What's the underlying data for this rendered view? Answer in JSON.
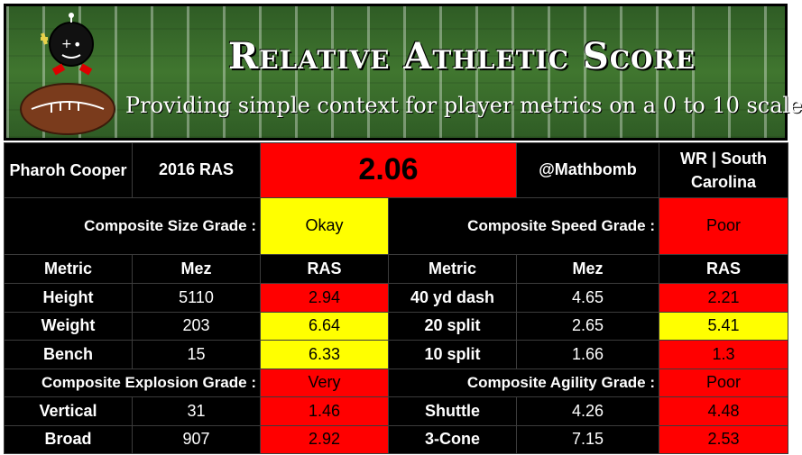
{
  "header": {
    "title": "Relative Athletic Score",
    "subtitle": "Providing simple context for player metrics on a 0 to 10 scale"
  },
  "player": {
    "name": "Pharoh Cooper",
    "ras_label": "2016 RAS",
    "ras_score": "2.06",
    "handle": "@Mathbomb",
    "position_school": "WR | South Carolina"
  },
  "composite": {
    "size_label": "Composite Size Grade :",
    "size_grade": "Okay",
    "speed_label": "Composite Speed Grade :",
    "speed_grade": "Poor",
    "explosion_label": "Composite Explosion Grade :",
    "explosion_grade": "Very",
    "agility_label": "Composite Agility Grade :",
    "agility_grade": "Poor"
  },
  "columns": {
    "metric": "Metric",
    "mez": "Mez",
    "ras": "RAS"
  },
  "left_metrics": [
    {
      "metric": "Height",
      "mez": "5110",
      "ras": "2.94",
      "color": "#ff0000"
    },
    {
      "metric": "Weight",
      "mez": "203",
      "ras": "6.64",
      "color": "#ffff00"
    },
    {
      "metric": "Bench",
      "mez": "15",
      "ras": "6.33",
      "color": "#ffff00"
    }
  ],
  "right_metrics": [
    {
      "metric": "40 yd dash",
      "mez": "4.65",
      "ras": "2.21",
      "color": "#ff0000"
    },
    {
      "metric": "20 split",
      "mez": "2.65",
      "ras": "5.41",
      "color": "#ffff00"
    },
    {
      "metric": "10 split",
      "mez": "1.66",
      "ras": "1.3",
      "color": "#ff0000"
    }
  ],
  "left_explosion": [
    {
      "metric": "Vertical",
      "mez": "31",
      "ras": "1.46",
      "color": "#ff0000"
    },
    {
      "metric": "Broad",
      "mez": "907",
      "ras": "2.92",
      "color": "#ff0000"
    }
  ],
  "right_agility": [
    {
      "metric": "Shuttle",
      "mez": "4.26",
      "ras": "4.48",
      "color": "#ff0000"
    },
    {
      "metric": "3-Cone",
      "mez": "7.15",
      "ras": "2.53",
      "color": "#ff0000"
    }
  ],
  "colors": {
    "poor": "#ff0000",
    "okay": "#ffff00",
    "background": "#000000",
    "field": "#3a6b2e"
  },
  "icons": [
    "robot-mascot-icon",
    "football-icon"
  ]
}
